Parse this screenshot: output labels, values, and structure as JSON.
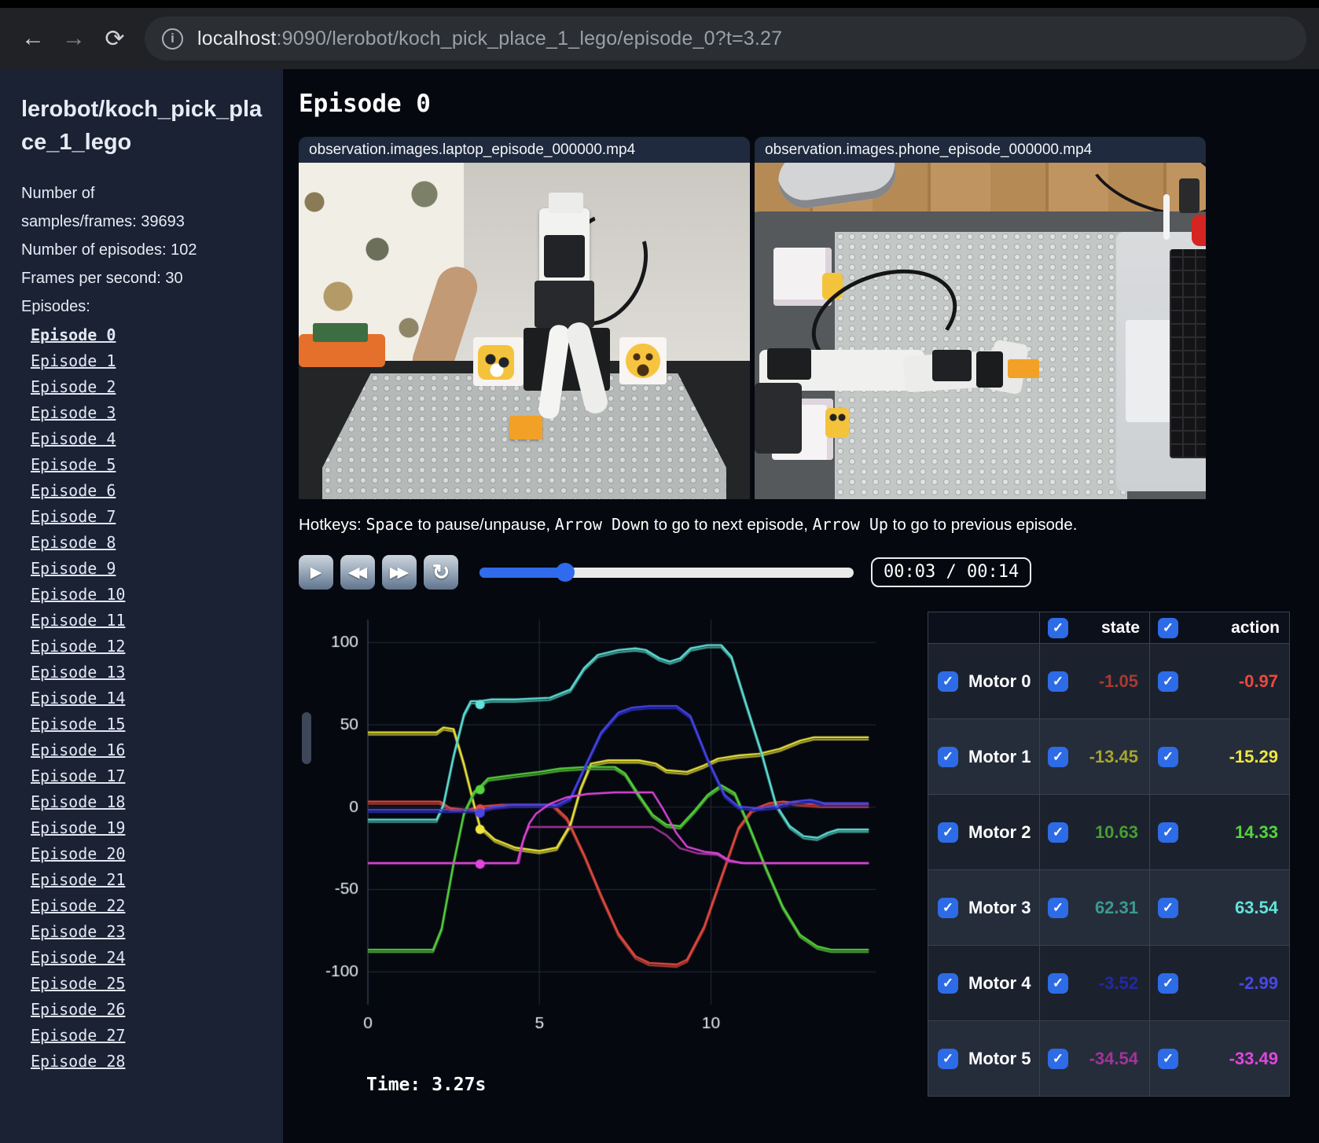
{
  "browser": {
    "back_icon": "←",
    "forward_icon": "→",
    "reload_icon": "⟳",
    "info_icon": "i",
    "url_host": "localhost",
    "url_rest": ":9090/lerobot/koch_pick_place_1_lego/episode_0?t=3.27"
  },
  "sidebar": {
    "title": "lerobot/koch_pick_place_1_lego",
    "info_lines": [
      "Number of samples/frames: 39693",
      "Number of episodes: 102",
      "Frames per second: 30",
      "Episodes:"
    ],
    "episodes": [
      {
        "label": "Episode 0",
        "active": true
      },
      {
        "label": "Episode 1"
      },
      {
        "label": "Episode 2"
      },
      {
        "label": "Episode 3"
      },
      {
        "label": "Episode 4"
      },
      {
        "label": "Episode 5"
      },
      {
        "label": "Episode 6"
      },
      {
        "label": "Episode 7"
      },
      {
        "label": "Episode 8"
      },
      {
        "label": "Episode 9"
      },
      {
        "label": "Episode 10"
      },
      {
        "label": "Episode 11"
      },
      {
        "label": "Episode 12"
      },
      {
        "label": "Episode 13"
      },
      {
        "label": "Episode 14"
      },
      {
        "label": "Episode 15"
      },
      {
        "label": "Episode 16"
      },
      {
        "label": "Episode 17"
      },
      {
        "label": "Episode 18"
      },
      {
        "label": "Episode 19"
      },
      {
        "label": "Episode 20"
      },
      {
        "label": "Episode 21"
      },
      {
        "label": "Episode 22"
      },
      {
        "label": "Episode 23"
      },
      {
        "label": "Episode 24"
      },
      {
        "label": "Episode 25"
      },
      {
        "label": "Episode 26"
      },
      {
        "label": "Episode 27"
      },
      {
        "label": "Episode 28"
      }
    ]
  },
  "main": {
    "heading": "Episode 0",
    "videos": [
      {
        "title": "observation.images.laptop_episode_000000.mp4"
      },
      {
        "title": "observation.images.phone_episode_000000.mp4"
      }
    ],
    "hotkeys": {
      "prefix": "Hotkeys: ",
      "key1": "Space",
      "mid1": " to pause/unpause, ",
      "key2": "Arrow Down",
      "mid2": " to go to next episode, ",
      "key3": "Arrow Up",
      "suffix": " to go to previous episode."
    },
    "controls": {
      "play_icon": "▶",
      "rewind_icon": "◀◀",
      "forward_icon": "▶▶",
      "loop_icon": "↻",
      "time": "00:03 / 00:14",
      "progress_percent": 23
    }
  },
  "chart_data": {
    "type": "line",
    "xlabel": "",
    "ylabel": "",
    "xlim": [
      0,
      14.8
    ],
    "ylim": [
      -118,
      114
    ],
    "xticks": [
      0,
      5,
      10
    ],
    "yticks": [
      -100,
      -50,
      0,
      50,
      100
    ],
    "grid": true,
    "legend_position": "none",
    "current_time": 3.27,
    "time_label": "Time: 3.27s",
    "motors": [
      {
        "label": "Motor 0",
        "state_color": "#a83a32",
        "action_color": "#e84a40",
        "state_value": "-1.05",
        "action_value": "-0.97",
        "points": [
          [
            0,
            2
          ],
          [
            2.1,
            2
          ],
          [
            2.4,
            -2
          ],
          [
            2.9,
            -3
          ],
          [
            3.27,
            -1
          ],
          [
            3.9,
            0
          ],
          [
            5.4,
            0
          ],
          [
            5.8,
            -8
          ],
          [
            6.3,
            -30
          ],
          [
            6.8,
            -55
          ],
          [
            7.3,
            -78
          ],
          [
            7.8,
            -92
          ],
          [
            8.2,
            -96
          ],
          [
            9.0,
            -97
          ],
          [
            9.3,
            -94
          ],
          [
            9.8,
            -74
          ],
          [
            10.3,
            -44
          ],
          [
            10.8,
            -14
          ],
          [
            11.2,
            -3
          ],
          [
            11.7,
            1
          ],
          [
            12.1,
            2
          ],
          [
            12.6,
            1
          ],
          [
            13.2,
            0
          ],
          [
            14.6,
            0
          ]
        ]
      },
      {
        "label": "Motor 1",
        "state_color": "#a8a430",
        "action_color": "#eee63e",
        "state_value": "-13.45",
        "action_value": "-15.29",
        "points": [
          [
            0,
            44
          ],
          [
            2.0,
            44
          ],
          [
            2.2,
            47
          ],
          [
            2.5,
            46
          ],
          [
            2.8,
            25
          ],
          [
            3.1,
            0
          ],
          [
            3.27,
            -13
          ],
          [
            3.7,
            -21
          ],
          [
            4.3,
            -26
          ],
          [
            5.0,
            -28
          ],
          [
            5.5,
            -26
          ],
          [
            5.9,
            -12
          ],
          [
            6.2,
            10
          ],
          [
            6.5,
            25
          ],
          [
            7.0,
            27
          ],
          [
            7.9,
            27
          ],
          [
            8.4,
            25
          ],
          [
            8.7,
            21
          ],
          [
            9.3,
            20
          ],
          [
            9.8,
            24
          ],
          [
            10.2,
            28
          ],
          [
            10.8,
            30
          ],
          [
            11.4,
            31
          ],
          [
            12.0,
            34
          ],
          [
            12.6,
            39
          ],
          [
            13.0,
            41
          ],
          [
            14.6,
            41
          ]
        ]
      },
      {
        "label": "Motor 2",
        "state_color": "#479e31",
        "action_color": "#55d43e",
        "state_value": "10.63",
        "action_value": "14.33",
        "points": [
          [
            0,
            -88
          ],
          [
            1.9,
            -88
          ],
          [
            2.15,
            -75
          ],
          [
            2.5,
            -35
          ],
          [
            2.8,
            -5
          ],
          [
            3.1,
            8
          ],
          [
            3.27,
            11
          ],
          [
            3.5,
            16
          ],
          [
            4.2,
            18
          ],
          [
            5.0,
            20
          ],
          [
            5.6,
            22
          ],
          [
            6.4,
            23
          ],
          [
            7.2,
            23
          ],
          [
            7.5,
            19
          ],
          [
            7.9,
            6
          ],
          [
            8.3,
            -6
          ],
          [
            8.7,
            -12
          ],
          [
            9.1,
            -13
          ],
          [
            9.5,
            -4
          ],
          [
            9.9,
            6
          ],
          [
            10.3,
            12
          ],
          [
            10.7,
            7
          ],
          [
            11.1,
            -12
          ],
          [
            11.6,
            -38
          ],
          [
            12.1,
            -62
          ],
          [
            12.6,
            -79
          ],
          [
            13.1,
            -86
          ],
          [
            13.5,
            -88
          ],
          [
            14.6,
            -88
          ]
        ]
      },
      {
        "label": "Motor 3",
        "state_color": "#3b9a90",
        "action_color": "#62e3da",
        "state_value": "62.31",
        "action_value": "63.54",
        "points": [
          [
            0,
            -9
          ],
          [
            2.0,
            -9
          ],
          [
            2.2,
            0
          ],
          [
            2.5,
            30
          ],
          [
            2.8,
            55
          ],
          [
            3.0,
            63
          ],
          [
            3.27,
            63
          ],
          [
            3.6,
            64
          ],
          [
            4.3,
            64
          ],
          [
            5.3,
            65
          ],
          [
            5.9,
            70
          ],
          [
            6.3,
            83
          ],
          [
            6.7,
            91
          ],
          [
            7.3,
            94
          ],
          [
            7.8,
            95
          ],
          [
            8.1,
            94
          ],
          [
            8.5,
            89
          ],
          [
            8.8,
            87
          ],
          [
            9.1,
            89
          ],
          [
            9.4,
            95
          ],
          [
            9.9,
            97
          ],
          [
            10.3,
            97
          ],
          [
            10.6,
            90
          ],
          [
            11.0,
            63
          ],
          [
            11.5,
            30
          ],
          [
            11.9,
            0
          ],
          [
            12.3,
            -13
          ],
          [
            12.7,
            -19
          ],
          [
            13.1,
            -20
          ],
          [
            13.4,
            -17
          ],
          [
            13.7,
            -15
          ],
          [
            14.6,
            -15
          ]
        ]
      },
      {
        "label": "Motor 4",
        "state_color": "#2328a8",
        "action_color": "#4847e8",
        "state_value": "-3.52",
        "action_value": "-2.99",
        "points": [
          [
            0,
            -3
          ],
          [
            3.0,
            -3
          ],
          [
            3.27,
            -3
          ],
          [
            3.7,
            -1
          ],
          [
            4.2,
            0
          ],
          [
            5.5,
            0
          ],
          [
            5.9,
            4
          ],
          [
            6.3,
            22
          ],
          [
            6.8,
            44
          ],
          [
            7.3,
            56
          ],
          [
            7.7,
            59
          ],
          [
            8.2,
            60
          ],
          [
            9.0,
            60
          ],
          [
            9.4,
            54
          ],
          [
            9.9,
            28
          ],
          [
            10.4,
            6
          ],
          [
            10.8,
            -1
          ],
          [
            11.3,
            -2
          ],
          [
            11.9,
            -1
          ],
          [
            12.4,
            2
          ],
          [
            12.9,
            3
          ],
          [
            13.3,
            1
          ],
          [
            14.6,
            1
          ]
        ]
      },
      {
        "label": "Motor 5",
        "state_color": "#a23499",
        "action_color": "#e146dd",
        "state_value": "-34.54",
        "action_value": "-33.49",
        "points": [
          [
            0,
            -34
          ],
          [
            4.4,
            -34
          ],
          [
            4.55,
            -18
          ],
          [
            4.7,
            -12
          ],
          [
            8.3,
            -12
          ],
          [
            8.7,
            -17
          ],
          [
            9.1,
            -25
          ],
          [
            9.6,
            -28
          ],
          [
            10.2,
            -29
          ],
          [
            10.5,
            -33
          ],
          [
            11.0,
            -34
          ],
          [
            14.6,
            -34
          ]
        ],
        "action_points": [
          [
            0,
            -34
          ],
          [
            4.35,
            -34
          ],
          [
            4.5,
            -22
          ],
          [
            4.7,
            -10
          ],
          [
            4.9,
            -4
          ],
          [
            5.3,
            2
          ],
          [
            5.8,
            6
          ],
          [
            6.4,
            8
          ],
          [
            7.2,
            9
          ],
          [
            8.3,
            9
          ],
          [
            8.6,
            -1
          ],
          [
            9.0,
            -16
          ],
          [
            9.3,
            -24
          ],
          [
            9.8,
            -27
          ],
          [
            10.2,
            -28
          ],
          [
            10.5,
            -32
          ],
          [
            10.9,
            -34
          ],
          [
            14.6,
            -34
          ]
        ]
      }
    ]
  },
  "table": {
    "state_header": "state",
    "action_header": "action"
  }
}
